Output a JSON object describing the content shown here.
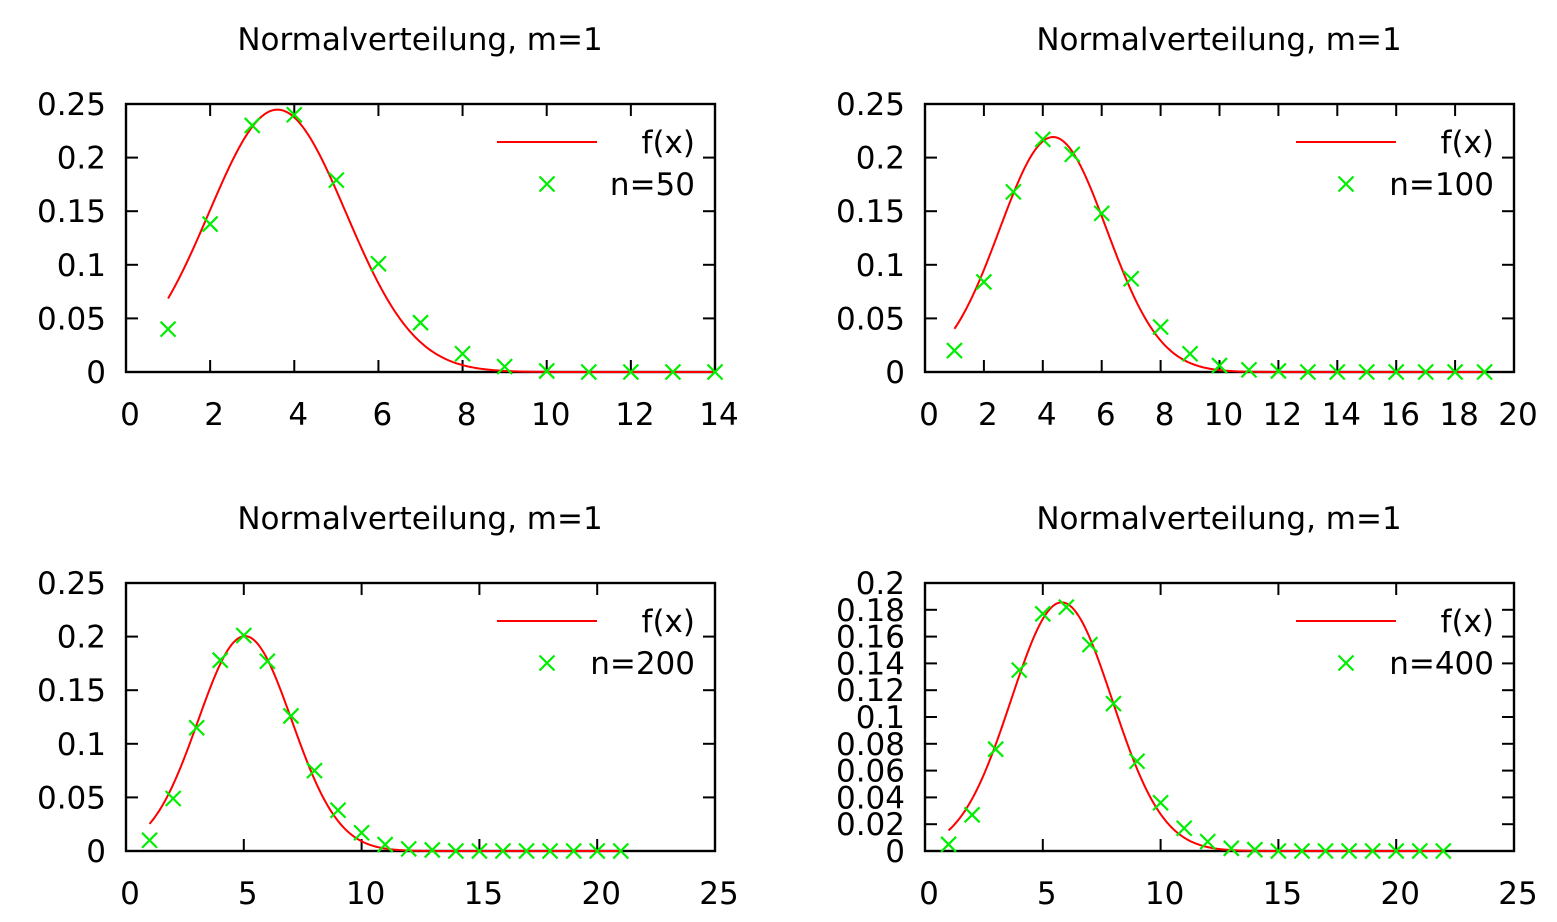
{
  "chart_data": [
    {
      "type": "line",
      "title": "Normalverteilung, m=1",
      "xlabel": "",
      "ylabel": "",
      "xlim": [
        0,
        14
      ],
      "ylim": [
        0,
        0.25
      ],
      "xticks": [
        0,
        2,
        4,
        6,
        8,
        10,
        12,
        14
      ],
      "xtick_labels": [
        "0",
        "2",
        "4",
        "6",
        "8",
        "10",
        "12",
        "14"
      ],
      "yticks": [
        0,
        0.05,
        0.1,
        0.15,
        0.2,
        0.25
      ],
      "ytick_labels": [
        "0",
        "0.05",
        "0.1",
        "0.15",
        "0.2",
        "0.25"
      ],
      "legend_position": "top-right",
      "grid": false,
      "curve": {
        "name": "f(x)",
        "color": "#ff0000",
        "mean": 3.6,
        "sd": 1.63,
        "x_from": 1,
        "x_to": 14
      },
      "series": [
        {
          "name": "n=50",
          "color": "#00ee00",
          "x": [
            1,
            2,
            3,
            4,
            5,
            6,
            7,
            8,
            9,
            10,
            11,
            12,
            13,
            14
          ],
          "values": [
            0.04,
            0.138,
            0.23,
            0.24,
            0.179,
            0.101,
            0.046,
            0.017,
            0.005,
            0.001,
            0,
            0,
            0,
            0
          ]
        }
      ]
    },
    {
      "type": "line",
      "title": "Normalverteilung, m=1",
      "xlabel": "",
      "ylabel": "",
      "xlim": [
        0,
        20
      ],
      "ylim": [
        0,
        0.25
      ],
      "xticks": [
        0,
        2,
        4,
        6,
        8,
        10,
        12,
        14,
        16,
        18,
        20
      ],
      "xtick_labels": [
        "0",
        "2",
        "4",
        "6",
        "8",
        "10",
        "12",
        "14",
        "16",
        "18",
        "20"
      ],
      "yticks": [
        0,
        0.05,
        0.1,
        0.15,
        0.2,
        0.25
      ],
      "ytick_labels": [
        "0",
        "0.05",
        "0.1",
        "0.15",
        "0.2",
        "0.25"
      ],
      "legend_position": "top-right",
      "grid": false,
      "curve": {
        "name": "f(x)",
        "color": "#ff0000",
        "mean": 4.35,
        "sd": 1.82,
        "x_from": 1,
        "x_to": 19
      },
      "series": [
        {
          "name": "n=100",
          "color": "#00ee00",
          "x": [
            1,
            2,
            3,
            4,
            5,
            6,
            7,
            8,
            9,
            10,
            11,
            12,
            13,
            14,
            15,
            16,
            17,
            18,
            19
          ],
          "values": [
            0.02,
            0.084,
            0.168,
            0.217,
            0.203,
            0.148,
            0.087,
            0.042,
            0.017,
            0.006,
            0.002,
            0.001,
            0,
            0,
            0,
            0,
            0,
            0,
            0
          ]
        }
      ]
    },
    {
      "type": "line",
      "title": "Normalverteilung, m=1",
      "xlabel": "",
      "ylabel": "",
      "xlim": [
        0,
        25
      ],
      "ylim": [
        0,
        0.25
      ],
      "xticks": [
        0,
        5,
        10,
        15,
        20,
        25
      ],
      "xtick_labels": [
        "0",
        "5",
        "10",
        "15",
        "20",
        "25"
      ],
      "yticks": [
        0,
        0.05,
        0.1,
        0.15,
        0.2,
        0.25
      ],
      "ytick_labels": [
        "0",
        "0.05",
        "0.1",
        "0.15",
        "0.2",
        "0.25"
      ],
      "legend_position": "top-right",
      "grid": false,
      "curve": {
        "name": "f(x)",
        "color": "#ff0000",
        "mean": 5.05,
        "sd": 1.99,
        "x_from": 1,
        "x_to": 21
      },
      "series": [
        {
          "name": "n=200",
          "color": "#00ee00",
          "x": [
            1,
            2,
            3,
            4,
            5,
            6,
            7,
            8,
            9,
            10,
            11,
            12,
            13,
            14,
            15,
            16,
            17,
            18,
            19,
            20,
            21
          ],
          "values": [
            0.01,
            0.049,
            0.115,
            0.178,
            0.201,
            0.177,
            0.126,
            0.075,
            0.038,
            0.017,
            0.006,
            0.002,
            0.001,
            0,
            0,
            0,
            0,
            0,
            0,
            0,
            0
          ]
        }
      ]
    },
    {
      "type": "line",
      "title": "Normalverteilung, m=1",
      "xlabel": "",
      "ylabel": "",
      "xlim": [
        0,
        25
      ],
      "ylim": [
        0,
        0.2
      ],
      "xticks": [
        0,
        5,
        10,
        15,
        20,
        25
      ],
      "xtick_labels": [
        "0",
        "5",
        "10",
        "15",
        "20",
        "25"
      ],
      "yticks": [
        0,
        0.02,
        0.04,
        0.06,
        0.08,
        0.1,
        0.12,
        0.14,
        0.16,
        0.18,
        0.2
      ],
      "ytick_labels": [
        "0",
        "0.02",
        "0.04",
        "0.06",
        "0.08",
        "0.1",
        "0.12",
        "0.14",
        "0.16",
        "0.18",
        "0.2"
      ],
      "legend_position": "top-right",
      "grid": false,
      "curve": {
        "name": "f(x)",
        "color": "#ff0000",
        "mean": 5.8,
        "sd": 2.15,
        "x_from": 1,
        "x_to": 22
      },
      "series": [
        {
          "name": "n=400",
          "color": "#00ee00",
          "x": [
            1,
            2,
            3,
            4,
            5,
            6,
            7,
            8,
            9,
            10,
            11,
            12,
            13,
            14,
            15,
            16,
            17,
            18,
            19,
            20,
            21,
            22
          ],
          "values": [
            0.005,
            0.027,
            0.076,
            0.135,
            0.177,
            0.182,
            0.154,
            0.11,
            0.067,
            0.036,
            0.017,
            0.007,
            0.002,
            0.001,
            0,
            0,
            0,
            0,
            0,
            0,
            0,
            0
          ]
        }
      ]
    }
  ]
}
